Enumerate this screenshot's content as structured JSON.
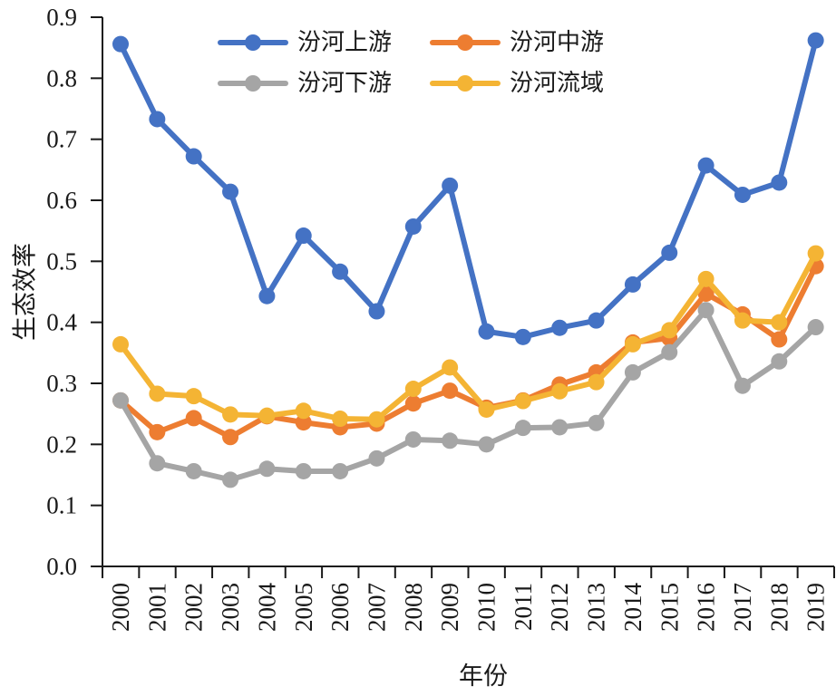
{
  "chart_data": {
    "type": "line",
    "title": "",
    "xlabel": "年份",
    "ylabel": "生态效率",
    "ylim": [
      0.0,
      0.9
    ],
    "yticks": [
      "0.0",
      "0.1",
      "0.2",
      "0.3",
      "0.4",
      "0.5",
      "0.6",
      "0.7",
      "0.8",
      "0.9"
    ],
    "grid": false,
    "legend_position": "top-center",
    "categories": [
      "2000",
      "2001",
      "2002",
      "2003",
      "2004",
      "2005",
      "2006",
      "2007",
      "2008",
      "2009",
      "2010",
      "2011",
      "2012",
      "2013",
      "2014",
      "2015",
      "2016",
      "2017",
      "2018",
      "2019"
    ],
    "series": [
      {
        "name": "汾河上游",
        "color": "#4472C4",
        "values": [
          0.856,
          0.733,
          0.672,
          0.614,
          0.443,
          0.542,
          0.483,
          0.418,
          0.557,
          0.624,
          0.385,
          0.376,
          0.391,
          0.403,
          0.462,
          0.514,
          0.657,
          0.609,
          0.629,
          0.862
        ]
      },
      {
        "name": "汾河中游",
        "color": "#ED7D31",
        "values": [
          0.272,
          0.22,
          0.243,
          0.212,
          0.246,
          0.236,
          0.228,
          0.234,
          0.267,
          0.288,
          0.26,
          0.272,
          0.298,
          0.318,
          0.367,
          0.374,
          0.447,
          0.413,
          0.372,
          0.492
        ]
      },
      {
        "name": "汾河下游",
        "color": "#A5A5A5",
        "values": [
          0.272,
          0.169,
          0.156,
          0.142,
          0.16,
          0.156,
          0.156,
          0.177,
          0.208,
          0.206,
          0.2,
          0.227,
          0.228,
          0.235,
          0.318,
          0.351,
          0.42,
          0.296,
          0.336,
          0.392
        ]
      },
      {
        "name": "汾河流域",
        "color": "#F4B434",
        "values": [
          0.364,
          0.283,
          0.279,
          0.249,
          0.247,
          0.255,
          0.242,
          0.241,
          0.291,
          0.326,
          0.257,
          0.271,
          0.287,
          0.302,
          0.364,
          0.387,
          0.471,
          0.403,
          0.4,
          0.513
        ]
      }
    ]
  }
}
